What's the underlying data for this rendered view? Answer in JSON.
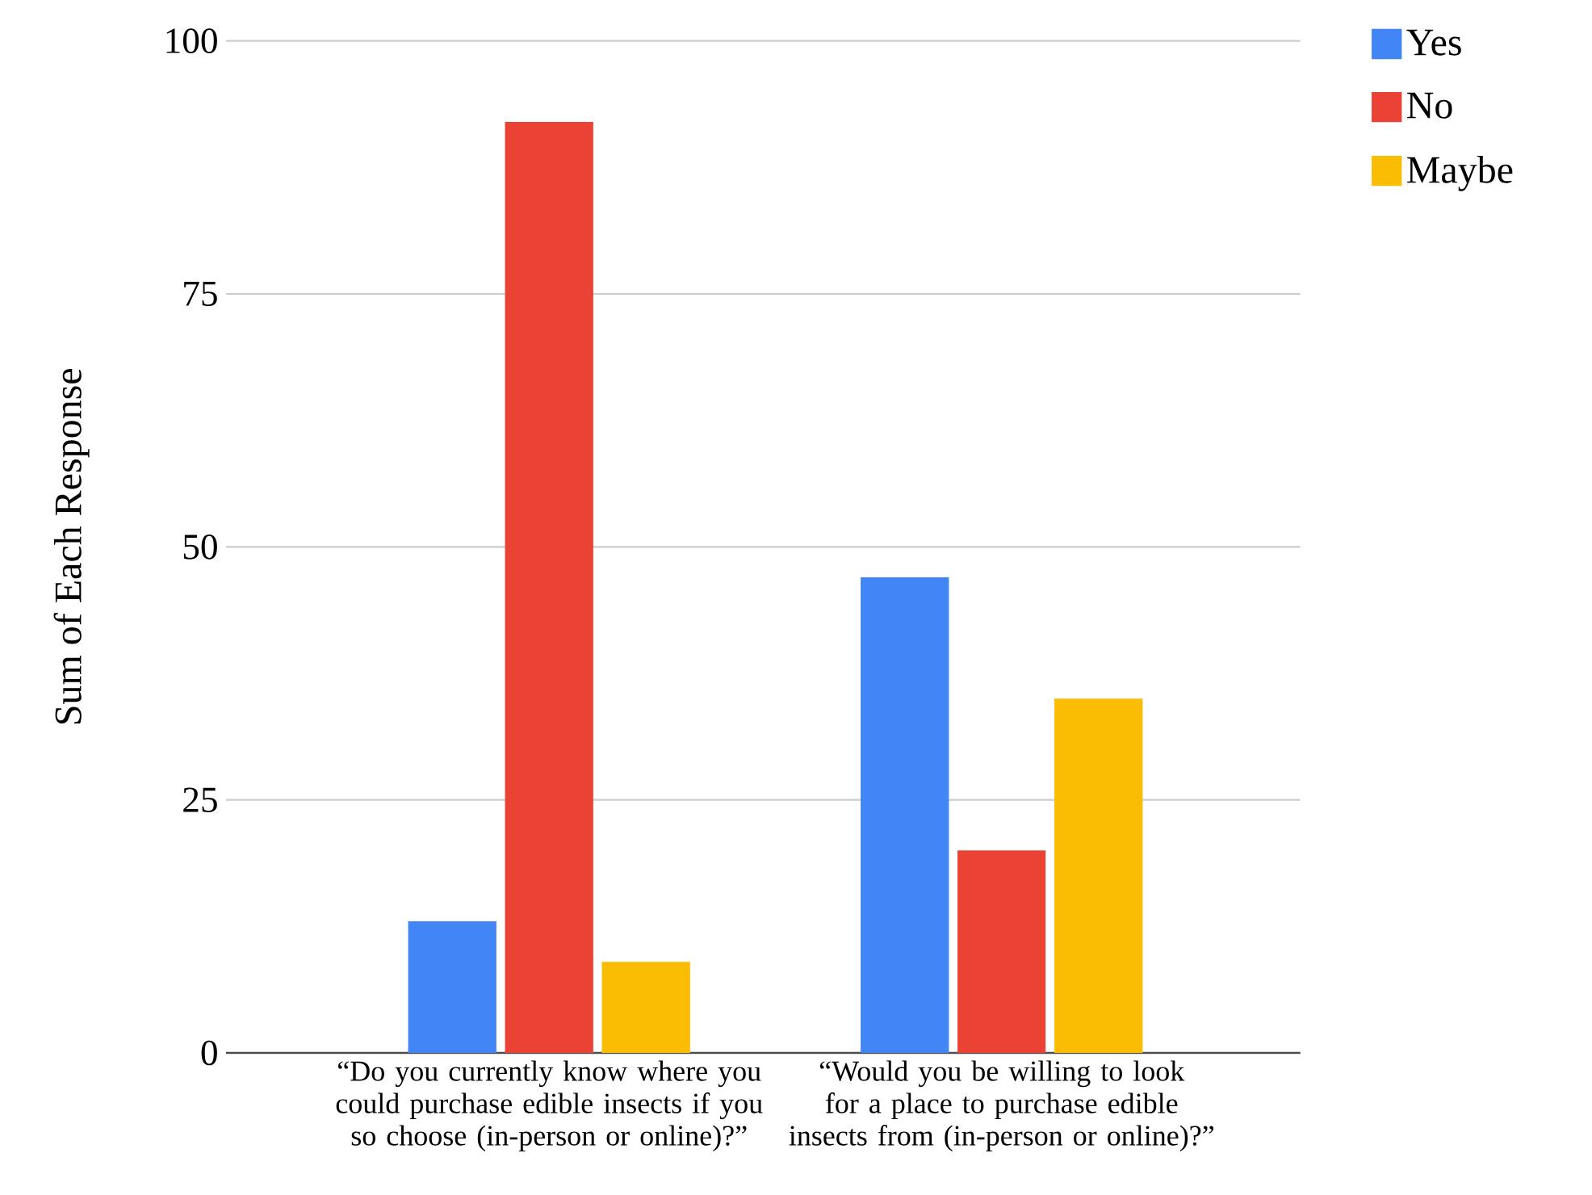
{
  "chart_data": {
    "type": "bar",
    "ylabel": "Sum of Each Response",
    "categories": [
      "“Do you currently know where you could purchase edible insects if you so choose (in-person or online)?”",
      "“Would you be willing to look for a place to purchase edible insects from (in-person or online)?”"
    ],
    "series": [
      {
        "name": "Yes",
        "color": "#4285f4",
        "values": [
          13,
          47
        ]
      },
      {
        "name": "No",
        "color": "#ea4335",
        "values": [
          92,
          20
        ]
      },
      {
        "name": "Maybe",
        "color": "#fbbc04",
        "values": [
          9,
          35
        ]
      }
    ],
    "ylim": [
      0,
      100
    ],
    "yticks": [
      0,
      25,
      50,
      75,
      100
    ],
    "grid": "y",
    "legend": "top right"
  }
}
